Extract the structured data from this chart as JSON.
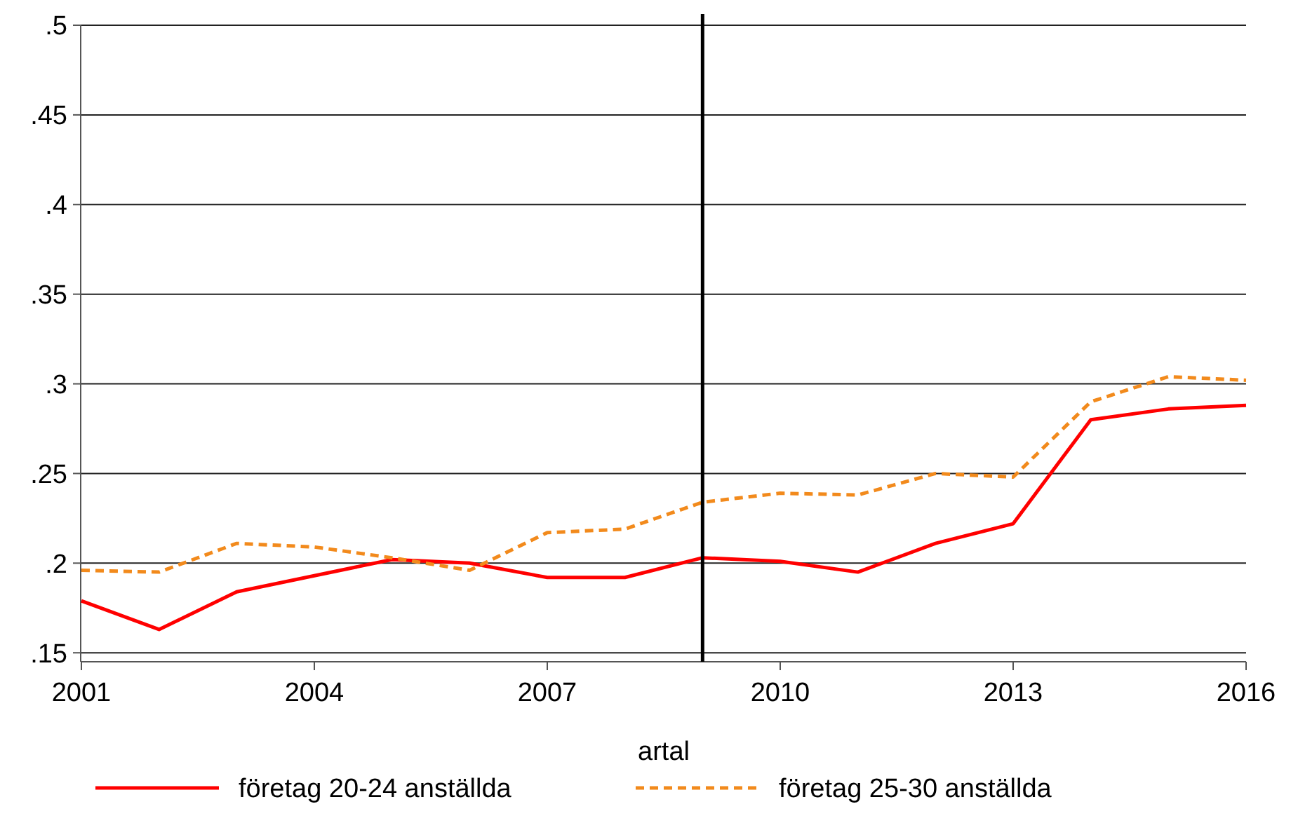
{
  "chart_data": {
    "type": "line",
    "xlabel": "artal",
    "x": [
      2001,
      2002,
      2003,
      2004,
      2005,
      2006,
      2007,
      2008,
      2009,
      2010,
      2011,
      2012,
      2013,
      2014,
      2015,
      2016
    ],
    "series": [
      {
        "name": "företag 20-24 anställda",
        "color": "#ff0000",
        "line_style": "solid",
        "values": [
          0.179,
          0.163,
          0.184,
          0.193,
          0.202,
          0.2,
          0.192,
          0.192,
          0.203,
          0.201,
          0.195,
          0.211,
          0.222,
          0.28,
          0.286,
          0.288
        ]
      },
      {
        "name": "företag 25-30 anställda",
        "color": "#f28a1c",
        "line_style": "dashed",
        "values": [
          0.196,
          0.195,
          0.211,
          0.209,
          0.203,
          0.196,
          0.217,
          0.219,
          0.234,
          0.239,
          0.238,
          0.25,
          0.248,
          0.29,
          0.304,
          0.302
        ]
      }
    ],
    "xlim": [
      2001,
      2016
    ],
    "xticks": [
      2001,
      2004,
      2007,
      2010,
      2013,
      2016
    ],
    "ylim": [
      0.145,
      0.5
    ],
    "yticks": [
      {
        "value": 0.15,
        "label": ".15"
      },
      {
        "value": 0.2,
        "label": ".2"
      },
      {
        "value": 0.25,
        "label": ".25"
      },
      {
        "value": 0.3,
        "label": ".3"
      },
      {
        "value": 0.35,
        "label": ".35"
      },
      {
        "value": 0.4,
        "label": ".4"
      },
      {
        "value": 0.45,
        "label": ".45"
      },
      {
        "value": 0.5,
        "label": ".5"
      }
    ],
    "grid": "y",
    "legend": "bottom",
    "ref_lines": [
      {
        "axis": "x",
        "value": 2009,
        "color": "#000000"
      }
    ]
  }
}
